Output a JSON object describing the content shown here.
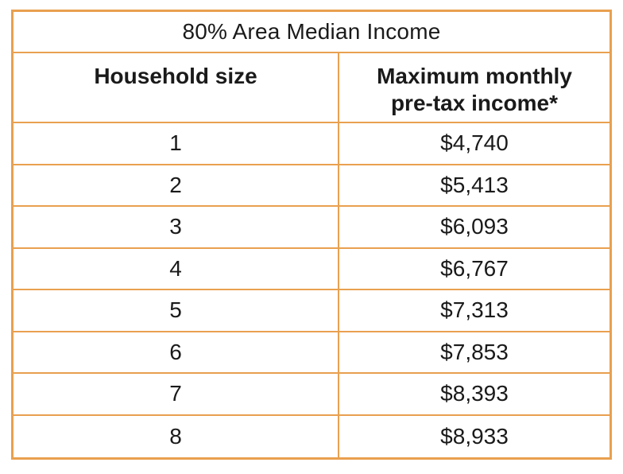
{
  "table": {
    "title": "80% Area Median Income",
    "headers": {
      "household_size": "Household size",
      "income_line1": "Maximum monthly",
      "income_line2": "pre-tax income*"
    },
    "rows": [
      {
        "size": "1",
        "income": "$4,740"
      },
      {
        "size": "2",
        "income": "$5,413"
      },
      {
        "size": "3",
        "income": "$6,093"
      },
      {
        "size": "4",
        "income": "$6,767"
      },
      {
        "size": "5",
        "income": "$7,313"
      },
      {
        "size": "6",
        "income": "$7,853"
      },
      {
        "size": "7",
        "income": "$8,393"
      },
      {
        "size": "8",
        "income": "$8,933"
      }
    ],
    "border_color": "#e9a04f"
  }
}
